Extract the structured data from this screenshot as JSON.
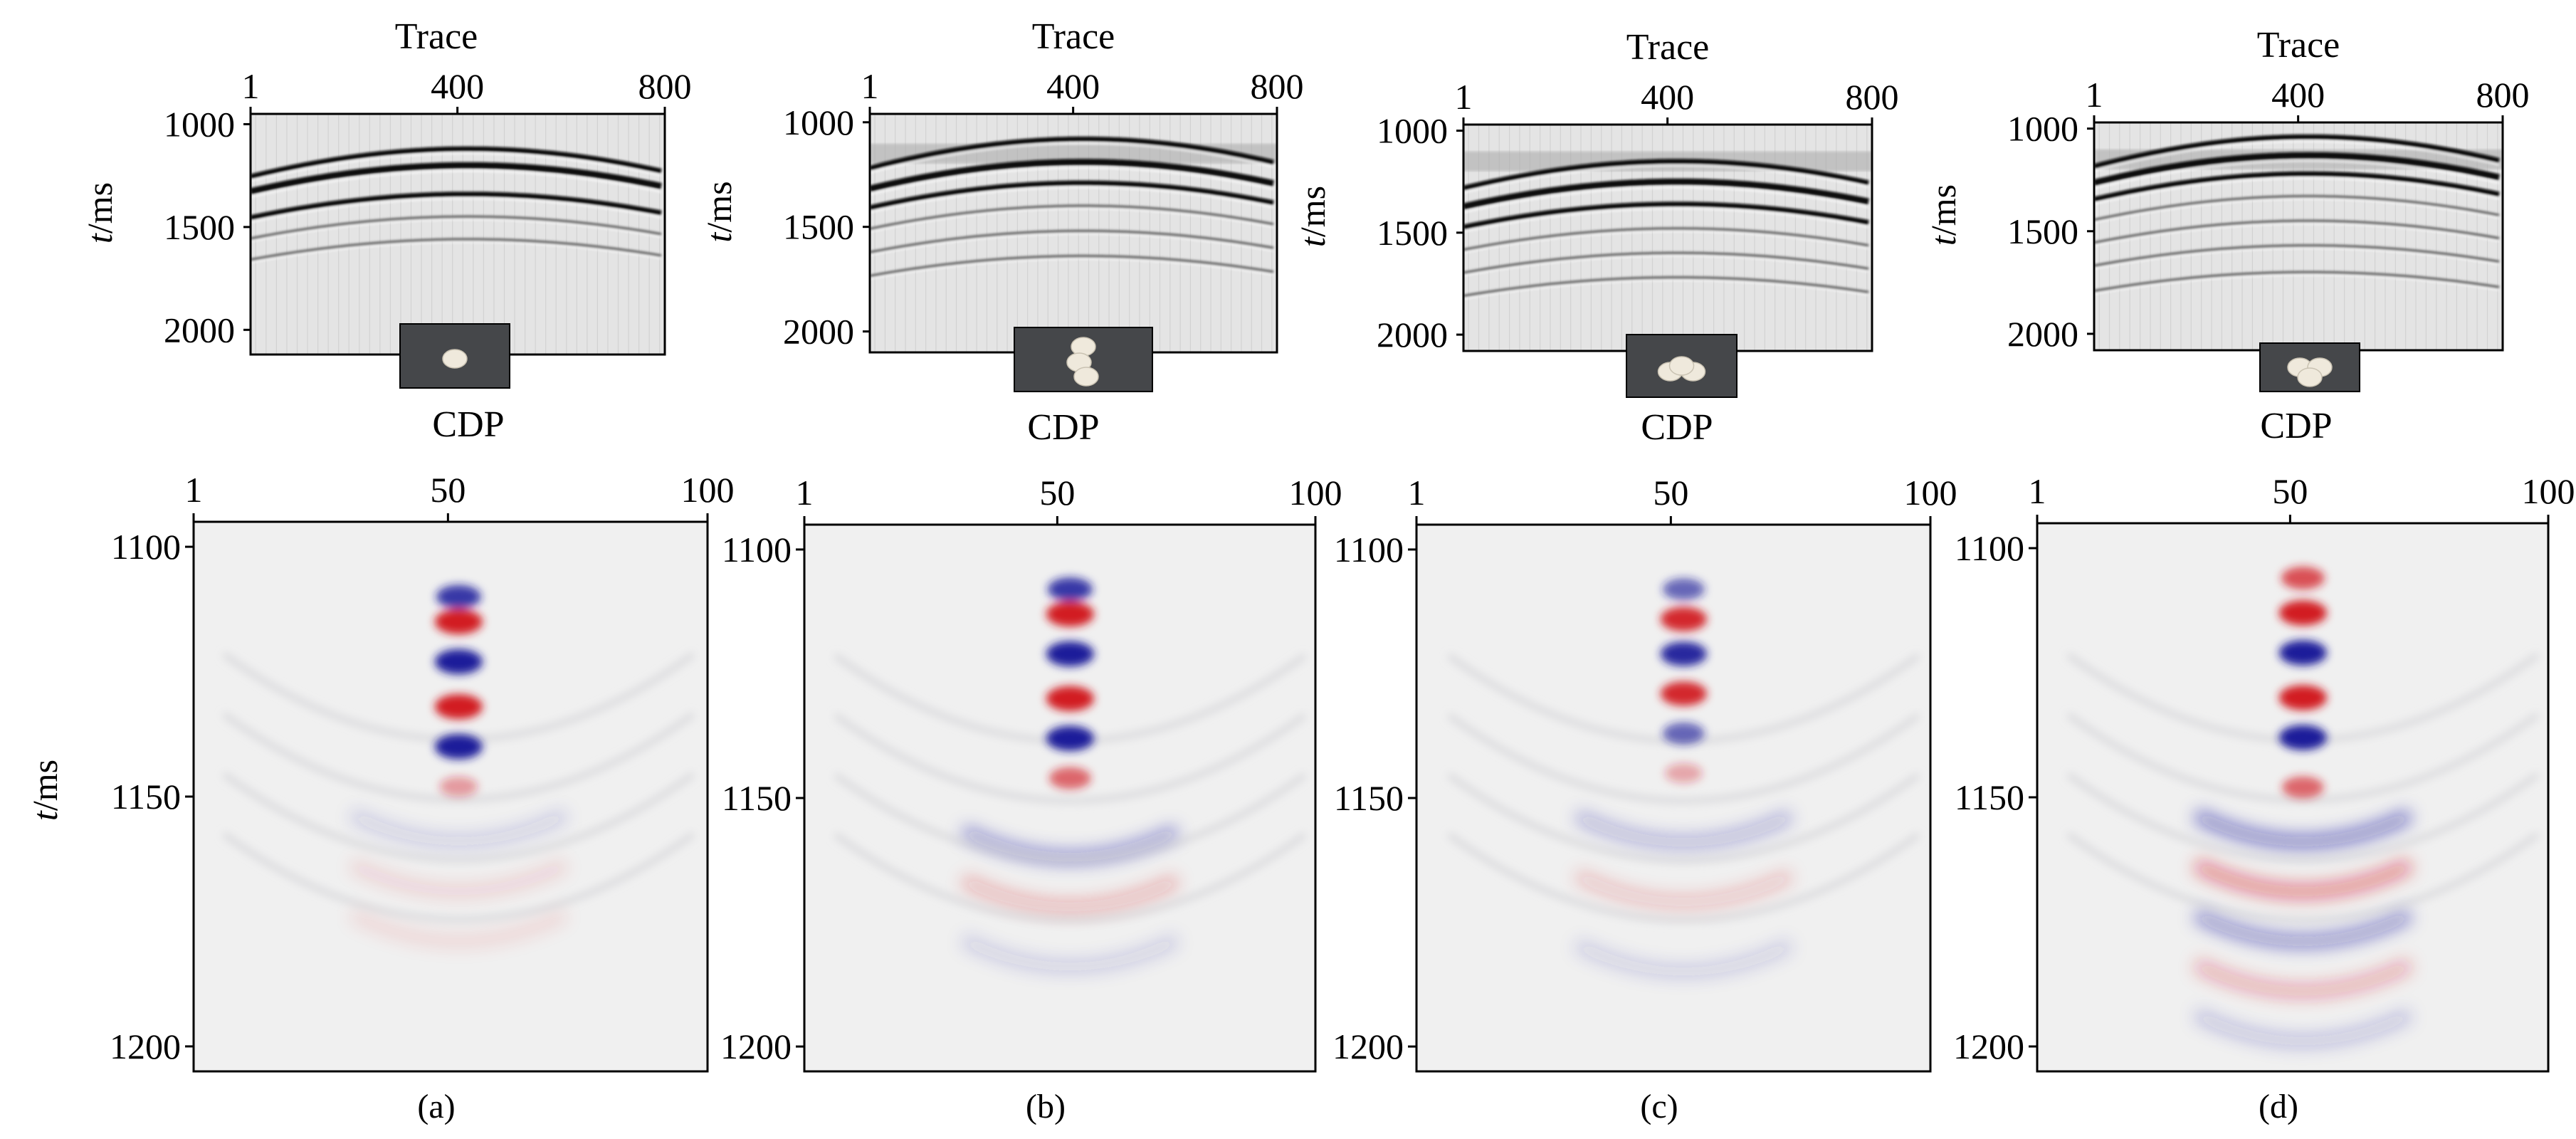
{
  "figure": {
    "top_xlabel": "Trace",
    "top_ylabel": "t/ms",
    "bottom_xlabel": "CDP",
    "bottom_ylabel": "t/ms",
    "panels": [
      {
        "caption": "(a)",
        "stones": 1
      },
      {
        "caption": "(b)",
        "stones": 3
      },
      {
        "caption": "(c)",
        "stones": 3
      },
      {
        "caption": "(d)",
        "stones": 3
      }
    ],
    "colors": {
      "positive": "#d21a24",
      "negative": "#1a1a9a",
      "background": "#f0f0f0",
      "gather_bg": "#e4e4e4"
    }
  },
  "chart_data": [
    {
      "type": "heatmap",
      "panel": "(a) gather",
      "xlabel": "Trace",
      "ylabel": "t/ms",
      "xticks": [
        1,
        400,
        800
      ],
      "yticks": [
        1000,
        1500,
        2000
      ],
      "xlim": [
        1,
        800
      ],
      "ylim": [
        2120,
        950
      ],
      "hyperbola_apex_ms": [
        1120,
        1200,
        1340,
        1450,
        1560
      ]
    },
    {
      "type": "heatmap",
      "panel": "(b) gather",
      "xlabel": "Trace",
      "ylabel": "t/ms",
      "xticks": [
        1,
        400,
        800
      ],
      "yticks": [
        1000,
        1500,
        2000
      ],
      "xlim": [
        1,
        800
      ],
      "ylim": [
        2100,
        960
      ],
      "hyperbola_apex_ms": [
        1080,
        1190,
        1290,
        1400,
        1520,
        1640
      ]
    },
    {
      "type": "heatmap",
      "panel": "(c) gather",
      "xlabel": "Trace",
      "ylabel": "t/ms",
      "xticks": [
        1,
        400,
        800
      ],
      "yticks": [
        1000,
        1500,
        2000
      ],
      "xlim": [
        1,
        800
      ],
      "ylim": [
        2080,
        970
      ],
      "hyperbola_apex_ms": [
        1150,
        1250,
        1360,
        1480,
        1600,
        1720
      ]
    },
    {
      "type": "heatmap",
      "panel": "(d) gather",
      "xlabel": "Trace",
      "ylabel": "t/ms",
      "xticks": [
        1,
        400,
        800
      ],
      "yticks": [
        1000,
        1500,
        2000
      ],
      "xlim": [
        1,
        800
      ],
      "ylim": [
        2080,
        970
      ],
      "hyperbola_apex_ms": [
        1040,
        1130,
        1220,
        1330,
        1450,
        1570,
        1700
      ]
    },
    {
      "type": "heatmap",
      "panel": "(a)",
      "xlabel": "CDP",
      "ylabel": "t/ms",
      "xticks": [
        1,
        50,
        100
      ],
      "yticks": [
        1100,
        1150,
        1200
      ],
      "xlim": [
        1,
        100
      ],
      "ylim": [
        1205,
        1095
      ],
      "center_cdp": 50,
      "blobs": [
        {
          "t": 1110,
          "amp": -0.8
        },
        {
          "t": 1115,
          "amp": 1.0
        },
        {
          "t": 1123,
          "amp": -1.0
        },
        {
          "t": 1132,
          "amp": 1.0
        },
        {
          "t": 1140,
          "amp": -1.0
        },
        {
          "t": 1148,
          "amp": 0.35
        }
      ],
      "tails": [
        {
          "t": 1160,
          "amp": -0.15
        },
        {
          "t": 1170,
          "amp": 0.12
        },
        {
          "t": 1180,
          "amp": 0.1
        }
      ]
    },
    {
      "type": "heatmap",
      "panel": "(b)",
      "xlabel": "CDP",
      "ylabel": "t/ms",
      "xticks": [
        1,
        50,
        100
      ],
      "yticks": [
        1100,
        1150,
        1200
      ],
      "xlim": [
        1,
        100
      ],
      "ylim": [
        1205,
        1095
      ],
      "center_cdp": 50,
      "blobs": [
        {
          "t": 1108,
          "amp": -0.8
        },
        {
          "t": 1113,
          "amp": 1.0
        },
        {
          "t": 1121,
          "amp": -1.0
        },
        {
          "t": 1130,
          "amp": 1.0
        },
        {
          "t": 1138,
          "amp": -1.0
        },
        {
          "t": 1146,
          "amp": 0.6
        }
      ],
      "tails": [
        {
          "t": 1163,
          "amp": -0.35
        },
        {
          "t": 1173,
          "amp": 0.25
        },
        {
          "t": 1185,
          "amp": -0.15
        }
      ]
    },
    {
      "type": "heatmap",
      "panel": "(c)",
      "xlabel": "CDP",
      "ylabel": "t/ms",
      "xticks": [
        1,
        50,
        100
      ],
      "yticks": [
        1100,
        1150,
        1200
      ],
      "xlim": [
        1,
        100
      ],
      "ylim": [
        1205,
        1095
      ],
      "center_cdp": 50,
      "blobs": [
        {
          "t": 1108,
          "amp": -0.6
        },
        {
          "t": 1114,
          "amp": 0.9
        },
        {
          "t": 1121,
          "amp": -0.9
        },
        {
          "t": 1129,
          "amp": 0.9
        },
        {
          "t": 1137,
          "amp": -0.6
        },
        {
          "t": 1145,
          "amp": 0.3
        }
      ],
      "tails": [
        {
          "t": 1160,
          "amp": -0.25
        },
        {
          "t": 1172,
          "amp": 0.2
        },
        {
          "t": 1186,
          "amp": -0.15
        }
      ]
    },
    {
      "type": "heatmap",
      "panel": "(d)",
      "xlabel": "CDP",
      "ylabel": "t/ms",
      "xticks": [
        1,
        50,
        100
      ],
      "yticks": [
        1100,
        1150,
        1200
      ],
      "xlim": [
        1,
        100
      ],
      "ylim": [
        1205,
        1095
      ],
      "center_cdp": 50,
      "blobs": [
        {
          "t": 1106,
          "amp": 0.7
        },
        {
          "t": 1113,
          "amp": 1.0
        },
        {
          "t": 1121,
          "amp": -1.0
        },
        {
          "t": 1130,
          "amp": 1.0
        },
        {
          "t": 1138,
          "amp": -1.0
        },
        {
          "t": 1148,
          "amp": 0.6
        }
      ],
      "tails": [
        {
          "t": 1160,
          "amp": -0.5
        },
        {
          "t": 1170,
          "amp": 0.45
        },
        {
          "t": 1180,
          "amp": -0.4
        },
        {
          "t": 1190,
          "amp": 0.3
        },
        {
          "t": 1200,
          "amp": -0.2
        }
      ]
    }
  ]
}
